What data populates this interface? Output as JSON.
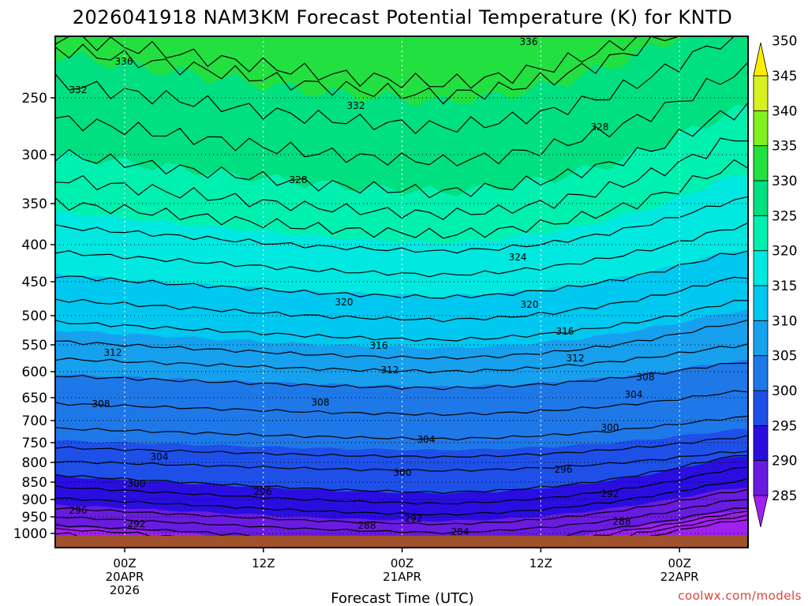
{
  "chart_data": {
    "type": "heatmap",
    "title": "2026041918 NAM3KM Forecast Potential Temperature (K) for KNTD",
    "xlabel": "Forecast Time (UTC)",
    "ylabel": "Pressure (hPa)",
    "credit": "coolwx.com/models",
    "y_ticks": [
      250,
      300,
      350,
      400,
      450,
      500,
      550,
      600,
      650,
      700,
      750,
      800,
      850,
      900,
      950,
      1000
    ],
    "y_tick_labels": [
      "250",
      "300",
      "350",
      "400",
      "450",
      "500",
      "550",
      "600",
      "650",
      "700",
      "750",
      "800",
      "850",
      "900",
      "950",
      "1000"
    ],
    "ylim": [
      1015,
      200
    ],
    "xlim": [
      -4,
      46
    ],
    "x_ticks": [
      {
        "hour": 6,
        "line1": "00Z",
        "line2": "20APR",
        "line3": "2026"
      },
      {
        "hour": 18,
        "line1": "12Z",
        "line2": "",
        "line3": ""
      },
      {
        "hour": 30,
        "line1": "00Z",
        "line2": "21APR",
        "line3": ""
      },
      {
        "hour": 42,
        "line1": "12Z",
        "line2": "",
        "line3": ""
      },
      {
        "hour": 54,
        "line1": "00Z",
        "line2": "22APR",
        "line3": ""
      }
    ],
    "x_hour_scale": 0.5,
    "colorbar": {
      "levels": [
        285,
        290,
        295,
        300,
        305,
        310,
        315,
        320,
        325,
        330,
        335,
        340,
        345,
        350
      ],
      "labels": [
        "285",
        "290",
        "295",
        "300",
        "305",
        "310",
        "315",
        "320",
        "325",
        "330",
        "335",
        "340",
        "345",
        "350"
      ],
      "colors": [
        "#a020f0",
        "#6a1be0",
        "#2a0ee0",
        "#1e50e8",
        "#1f78e8",
        "#17a0ee",
        "#00c8f0",
        "#00e8e0",
        "#00f0b0",
        "#00e080",
        "#22e040",
        "#80f020",
        "#d8f020",
        "#ffee00"
      ]
    },
    "contour_labels": [
      "336",
      "336",
      "332",
      "332",
      "328",
      "328",
      "324",
      "320",
      "320",
      "316",
      "316",
      "312",
      "312",
      "312",
      "308",
      "308",
      "308",
      "304",
      "304",
      "304",
      "300",
      "300",
      "300",
      "296",
      "296",
      "296",
      "292",
      "292",
      "292",
      "288",
      "288",
      "284"
    ],
    "series": [
      {
        "name": "tropopause_upper",
        "pressure_by_hour": [
          [
            -4,
            228
          ],
          [
            4,
            232
          ],
          [
            12,
            232
          ],
          [
            20,
            230
          ],
          [
            30,
            232
          ],
          [
            40,
            230
          ],
          [
            48,
            228
          ],
          [
            58,
            230
          ]
        ]
      },
      {
        "name": "theta_320_level",
        "pressure_by_hour": [
          [
            -4,
            430
          ],
          [
            6,
            455
          ],
          [
            18,
            472
          ],
          [
            30,
            462
          ],
          [
            38,
            478
          ],
          [
            46,
            448
          ],
          [
            58,
            428
          ]
        ]
      },
      {
        "name": "theta_308_level",
        "pressure_by_hour": [
          [
            -4,
            665
          ],
          [
            6,
            665
          ],
          [
            18,
            660
          ],
          [
            30,
            650
          ],
          [
            40,
            640
          ],
          [
            50,
            628
          ],
          [
            58,
            618
          ]
        ]
      },
      {
        "name": "theta_300_level",
        "pressure_by_hour": [
          [
            -4,
            825
          ],
          [
            6,
            830
          ],
          [
            18,
            830
          ],
          [
            30,
            812
          ],
          [
            40,
            780
          ],
          [
            48,
            752
          ],
          [
            58,
            738
          ]
        ]
      },
      {
        "name": "theta_292_level",
        "pressure_by_hour": [
          [
            -4,
            935
          ],
          [
            6,
            948
          ],
          [
            18,
            960
          ],
          [
            30,
            952
          ],
          [
            40,
            928
          ],
          [
            50,
            895
          ],
          [
            58,
            880
          ]
        ]
      }
    ]
  }
}
